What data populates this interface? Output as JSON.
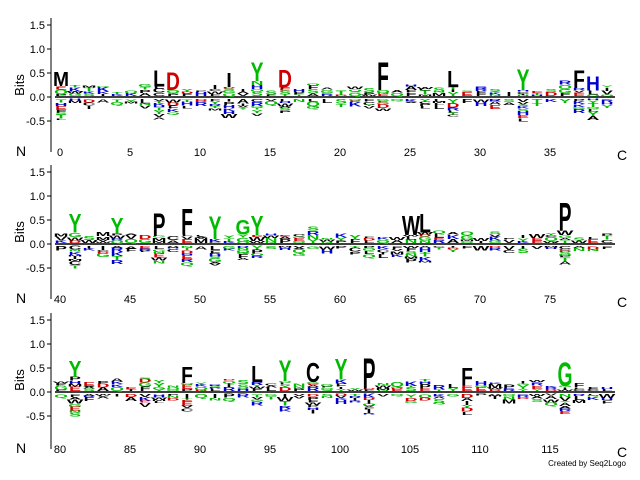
{
  "chart_data": {
    "type": "sequence-logo",
    "ylabel": "Bits",
    "yticks": [
      1.5,
      1.0,
      0.5,
      0.0,
      -0.5
    ],
    "ylim": [
      -0.7,
      1.55
    ],
    "n_label": "N",
    "c_label": "C",
    "credit": "Created by Seq2Logo",
    "color_scheme": {
      "hydrophobic": "#000000",
      "acidic": "#d00000",
      "basic": "#0000cc",
      "polar": "#00bb00",
      "glycine": "#00bb00",
      "other": "#800080"
    },
    "rows": [
      {
        "start": 0,
        "end": 39,
        "xticks": [
          0,
          5,
          10,
          15,
          20,
          25,
          30,
          35
        ],
        "positions": [
          {
            "pos": 0,
            "top": "M",
            "height": 0.3
          },
          {
            "pos": 7,
            "top": "L",
            "height": 0.35
          },
          {
            "pos": 8,
            "top": "D",
            "height": 0.38
          },
          {
            "pos": 12,
            "top": "I",
            "height": 0.3
          },
          {
            "pos": 14,
            "top": "Y",
            "height": 0.4
          },
          {
            "pos": 16,
            "top": "D",
            "height": 0.38
          },
          {
            "pos": 23,
            "top": "F",
            "height": 0.6
          },
          {
            "pos": 28,
            "top": "L",
            "height": 0.35
          },
          {
            "pos": 33,
            "top": "Y",
            "height": 0.45
          },
          {
            "pos": 37,
            "top": "F",
            "height": 0.38
          },
          {
            "pos": 38,
            "top": "H",
            "height": 0.3
          }
        ]
      },
      {
        "start": 40,
        "end": 79,
        "xticks": [
          40,
          45,
          50,
          55,
          60,
          65,
          70,
          75
        ],
        "positions": [
          {
            "pos": 41,
            "top": "Y",
            "height": 0.4
          },
          {
            "pos": 44,
            "top": "Y",
            "height": 0.35
          },
          {
            "pos": 47,
            "top": "P",
            "height": 0.48
          },
          {
            "pos": 49,
            "top": "F",
            "height": 0.55
          },
          {
            "pos": 51,
            "top": "Y",
            "height": 0.48
          },
          {
            "pos": 53,
            "top": "G",
            "height": 0.32
          },
          {
            "pos": 54,
            "top": "Y",
            "height": 0.42
          },
          {
            "pos": 65,
            "top": "W",
            "height": 0.42
          },
          {
            "pos": 66,
            "top": "L",
            "height": 0.4
          },
          {
            "pos": 76,
            "top": "P",
            "height": 0.6
          }
        ]
      },
      {
        "start": 80,
        "end": 119,
        "xticks": [
          80,
          85,
          90,
          95,
          100,
          105,
          110,
          115
        ],
        "positions": [
          {
            "pos": 81,
            "top": "Y",
            "height": 0.35
          },
          {
            "pos": 89,
            "top": "F",
            "height": 0.35
          },
          {
            "pos": 94,
            "top": "L",
            "height": 0.35
          },
          {
            "pos": 96,
            "top": "Y",
            "height": 0.45
          },
          {
            "pos": 98,
            "top": "C",
            "height": 0.42
          },
          {
            "pos": 100,
            "top": "Y",
            "height": 0.45
          },
          {
            "pos": 102,
            "top": "P",
            "height": 0.65
          },
          {
            "pos": 109,
            "top": "F",
            "height": 0.38
          },
          {
            "pos": 116,
            "top": "G",
            "height": 0.52
          }
        ]
      }
    ]
  }
}
